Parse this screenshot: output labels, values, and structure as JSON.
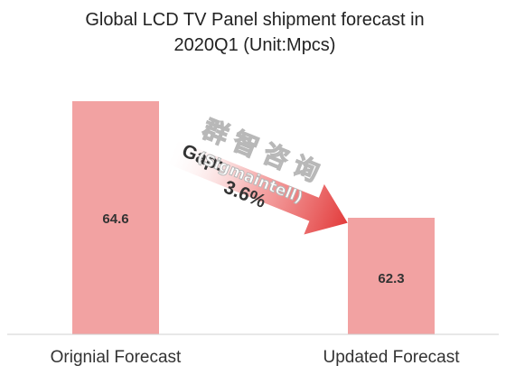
{
  "chart_data": {
    "type": "bar",
    "title_line1": "Global LCD TV Panel shipment forecast in",
    "title_line2": "2020Q1 (Unit:Mpcs)",
    "categories": [
      "Orignial Forecast",
      "Updated Forecast"
    ],
    "values": [
      64.6,
      62.3
    ],
    "value_labels": [
      "64.6",
      "62.3"
    ],
    "ylim": [
      60,
      66
    ],
    "grid": false,
    "legend": "none",
    "annotation": {
      "gap_label": "Gap:",
      "gap_value": "3.6%",
      "arrow_color": "#e23b3b"
    },
    "bar_color": "#f2a2a2",
    "watermark": {
      "chinese": "群智咨询",
      "english": "(Sigmaintell)"
    }
  }
}
